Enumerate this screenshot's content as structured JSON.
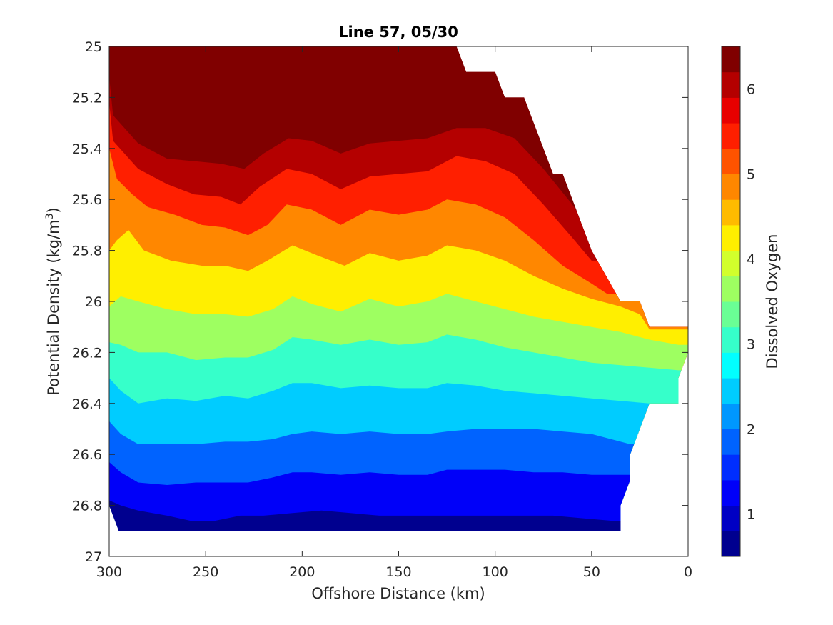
{
  "chart_data": {
    "type": "contourf",
    "title": "Line 57, 05/30",
    "xlabel": "Offshore Distance (km)",
    "ylabel_main": "Potential Density (kg/m",
    "ylabel_sup": "3",
    "ylabel_end": ")",
    "colorbar_label": "Dissolved Oxygen",
    "xlim": [
      300,
      0
    ],
    "ylim": [
      25,
      27
    ],
    "x_reversed": true,
    "y_reversed": true,
    "x_ticks": [
      300,
      250,
      200,
      150,
      100,
      50,
      0
    ],
    "x_tick_labels": [
      "300",
      "250",
      "200",
      "150",
      "100",
      "50",
      "0"
    ],
    "y_ticks": [
      25,
      25.2,
      25.4,
      25.6,
      25.8,
      26,
      26.2,
      26.4,
      26.6,
      26.8,
      27
    ],
    "y_tick_labels": [
      "25",
      "25.2",
      "25.4",
      "25.6",
      "25.8",
      "26",
      "26.2",
      "26.4",
      "26.6",
      "26.8",
      "27"
    ],
    "colorbar_range": [
      0.5,
      6.5
    ],
    "colorbar_ticks": [
      1,
      2,
      3,
      4,
      5,
      6
    ],
    "colorbar_tick_labels": [
      "1",
      "2",
      "3",
      "4",
      "5",
      "6"
    ],
    "contour_step": 0.25,
    "colors": [
      "#00008f",
      "#0000c4",
      "#0000f9",
      "#002eff",
      "#0063ff",
      "#0097ff",
      "#00ccff",
      "#02ffff",
      "#36ffca",
      "#6aff95",
      "#9eff61",
      "#d2ff2c",
      "#ffef00",
      "#ffbb00",
      "#ff8700",
      "#ff5300",
      "#ff1f00",
      "#e80000",
      "#b40000",
      "#800000"
    ],
    "data_top_boundary": [
      [
        300,
        25
      ],
      [
        120,
        25
      ],
      [
        115,
        25.1
      ],
      [
        100,
        25.1
      ],
      [
        95,
        25.2
      ],
      [
        85,
        25.2
      ],
      [
        80,
        25.3
      ],
      [
        70,
        25.5
      ],
      [
        65,
        25.5
      ],
      [
        50,
        25.8
      ],
      [
        35,
        26
      ],
      [
        25,
        26
      ],
      [
        20,
        26.1
      ],
      [
        0,
        26.1
      ]
    ],
    "data_bottom_boundary": [
      [
        0,
        26.2
      ],
      [
        5,
        26.3
      ],
      [
        5,
        26.4
      ],
      [
        20,
        26.4
      ],
      [
        30,
        26.6
      ],
      [
        30,
        26.7
      ],
      [
        35,
        26.8
      ],
      [
        35,
        26.9
      ],
      [
        295,
        26.9
      ],
      [
        300,
        26.8
      ]
    ],
    "isolines": [
      {
        "level": 6.25,
        "points": [
          [
            300,
            25
          ],
          [
            297,
            25.08
          ],
          [
            287,
            25.2
          ],
          [
            270,
            25.24
          ],
          [
            255,
            25.19
          ],
          [
            240,
            25.21
          ],
          [
            228,
            25.25
          ],
          [
            215,
            25.22
          ],
          [
            205,
            25.2
          ],
          [
            195,
            25.17
          ],
          [
            180,
            25.16
          ],
          [
            165,
            25.14
          ],
          [
            150,
            25.12
          ],
          [
            135,
            25.1
          ],
          [
            125,
            25.07
          ],
          [
            120,
            25.02
          ]
        ]
      },
      {
        "level": 5.75,
        "points": [
          [
            300,
            25
          ],
          [
            298,
            25.16
          ],
          [
            285,
            25.28
          ],
          [
            272,
            25.32
          ],
          [
            256,
            25.3
          ],
          [
            240,
            25.31
          ],
          [
            228,
            25.34
          ],
          [
            218,
            25.31
          ],
          [
            205,
            25.28
          ],
          [
            193,
            25.29
          ],
          [
            180,
            25.31
          ],
          [
            165,
            25.27
          ],
          [
            150,
            25.26
          ],
          [
            135,
            25.25
          ],
          [
            120,
            25.21
          ],
          [
            108,
            25.2
          ],
          [
            95,
            25.22
          ],
          [
            85,
            25.24
          ],
          [
            75,
            25.34
          ],
          [
            65,
            25.5
          ]
        ]
      },
      {
        "level": 5.25,
        "points": [
          [
            300,
            25.12
          ],
          [
            298,
            25.27
          ],
          [
            285,
            25.38
          ],
          [
            270,
            25.44
          ],
          [
            256,
            25.45
          ],
          [
            242,
            25.46
          ],
          [
            230,
            25.48
          ],
          [
            220,
            25.42
          ],
          [
            207,
            25.36
          ],
          [
            195,
            25.37
          ],
          [
            180,
            25.42
          ],
          [
            165,
            25.38
          ],
          [
            150,
            25.37
          ],
          [
            135,
            25.36
          ],
          [
            120,
            25.32
          ],
          [
            105,
            25.32
          ],
          [
            90,
            25.36
          ],
          [
            75,
            25.48
          ],
          [
            60,
            25.62
          ],
          [
            55,
            25.68
          ]
        ]
      },
      {
        "level": 4.75,
        "points": [
          [
            300,
            25.22
          ],
          [
            298,
            25.37
          ],
          [
            285,
            25.48
          ],
          [
            270,
            25.54
          ],
          [
            256,
            25.58
          ],
          [
            242,
            25.59
          ],
          [
            232,
            25.62
          ],
          [
            222,
            25.55
          ],
          [
            208,
            25.48
          ],
          [
            195,
            25.5
          ],
          [
            180,
            25.56
          ],
          [
            165,
            25.51
          ],
          [
            150,
            25.5
          ],
          [
            135,
            25.49
          ],
          [
            120,
            25.43
          ],
          [
            105,
            25.45
          ],
          [
            90,
            25.5
          ],
          [
            75,
            25.62
          ],
          [
            60,
            25.75
          ],
          [
            50,
            25.84
          ]
        ]
      },
      {
        "level": 4.25,
        "points": [
          [
            300,
            25.4
          ],
          [
            296,
            25.52
          ],
          [
            288,
            25.58
          ],
          [
            280,
            25.63
          ],
          [
            266,
            25.66
          ],
          [
            252,
            25.7
          ],
          [
            240,
            25.71
          ],
          [
            228,
            25.74
          ],
          [
            218,
            25.7
          ],
          [
            208,
            25.62
          ],
          [
            195,
            25.64
          ],
          [
            180,
            25.7
          ],
          [
            165,
            25.64
          ],
          [
            150,
            25.66
          ],
          [
            135,
            25.64
          ],
          [
            125,
            25.6
          ],
          [
            110,
            25.62
          ],
          [
            95,
            25.67
          ],
          [
            80,
            25.76
          ],
          [
            65,
            25.86
          ],
          [
            50,
            25.93
          ],
          [
            42,
            25.97
          ]
        ]
      },
      {
        "level": 3.75,
        "points": [
          [
            300,
            25.8
          ],
          [
            296,
            25.76
          ],
          [
            290,
            25.72
          ],
          [
            282,
            25.8
          ],
          [
            268,
            25.84
          ],
          [
            252,
            25.86
          ],
          [
            240,
            25.86
          ],
          [
            228,
            25.88
          ],
          [
            218,
            25.84
          ],
          [
            205,
            25.78
          ],
          [
            192,
            25.82
          ],
          [
            178,
            25.86
          ],
          [
            165,
            25.81
          ],
          [
            150,
            25.84
          ],
          [
            135,
            25.82
          ],
          [
            125,
            25.78
          ],
          [
            110,
            25.8
          ],
          [
            95,
            25.84
          ],
          [
            80,
            25.9
          ],
          [
            65,
            25.95
          ],
          [
            50,
            25.99
          ],
          [
            35,
            26.02
          ],
          [
            25,
            26.05
          ],
          [
            20,
            26.11
          ]
        ]
      },
      {
        "level": 3.25,
        "points": [
          [
            300,
            26.02
          ],
          [
            294,
            25.98
          ],
          [
            285,
            26.0
          ],
          [
            270,
            26.03
          ],
          [
            255,
            26.05
          ],
          [
            240,
            26.05
          ],
          [
            228,
            26.06
          ],
          [
            215,
            26.03
          ],
          [
            205,
            25.98
          ],
          [
            195,
            26.01
          ],
          [
            180,
            26.04
          ],
          [
            165,
            25.99
          ],
          [
            150,
            26.02
          ],
          [
            135,
            26.0
          ],
          [
            125,
            25.97
          ],
          [
            110,
            26.0
          ],
          [
            95,
            26.03
          ],
          [
            80,
            26.06
          ],
          [
            65,
            26.08
          ],
          [
            50,
            26.1
          ],
          [
            35,
            26.12
          ],
          [
            20,
            26.15
          ],
          [
            5,
            26.17
          ]
        ]
      },
      {
        "level": 2.75,
        "points": [
          [
            300,
            26.16
          ],
          [
            294,
            26.17
          ],
          [
            285,
            26.2
          ],
          [
            270,
            26.2
          ],
          [
            255,
            26.23
          ],
          [
            240,
            26.22
          ],
          [
            228,
            26.22
          ],
          [
            215,
            26.19
          ],
          [
            205,
            26.14
          ],
          [
            195,
            26.15
          ],
          [
            180,
            26.17
          ],
          [
            165,
            26.15
          ],
          [
            150,
            26.17
          ],
          [
            135,
            26.16
          ],
          [
            125,
            26.13
          ],
          [
            110,
            26.15
          ],
          [
            95,
            26.18
          ],
          [
            80,
            26.2
          ],
          [
            65,
            26.22
          ],
          [
            50,
            26.24
          ],
          [
            35,
            26.25
          ],
          [
            20,
            26.26
          ],
          [
            5,
            26.27
          ]
        ]
      },
      {
        "level": 2.25,
        "points": [
          [
            300,
            26.3
          ],
          [
            294,
            26.35
          ],
          [
            285,
            26.4
          ],
          [
            270,
            26.38
          ],
          [
            255,
            26.39
          ],
          [
            240,
            26.37
          ],
          [
            228,
            26.38
          ],
          [
            215,
            26.35
          ],
          [
            205,
            26.32
          ],
          [
            195,
            26.32
          ],
          [
            180,
            26.34
          ],
          [
            165,
            26.33
          ],
          [
            150,
            26.34
          ],
          [
            135,
            26.34
          ],
          [
            125,
            26.32
          ],
          [
            110,
            26.33
          ],
          [
            95,
            26.35
          ],
          [
            80,
            26.36
          ],
          [
            65,
            26.37
          ],
          [
            50,
            26.38
          ],
          [
            35,
            26.39
          ],
          [
            20,
            26.4
          ]
        ]
      },
      {
        "level": 1.75,
        "points": [
          [
            300,
            26.47
          ],
          [
            294,
            26.52
          ],
          [
            285,
            26.56
          ],
          [
            270,
            26.56
          ],
          [
            255,
            26.56
          ],
          [
            240,
            26.55
          ],
          [
            228,
            26.55
          ],
          [
            215,
            26.54
          ],
          [
            205,
            26.52
          ],
          [
            195,
            26.51
          ],
          [
            180,
            26.52
          ],
          [
            165,
            26.51
          ],
          [
            150,
            26.52
          ],
          [
            135,
            26.52
          ],
          [
            125,
            26.51
          ],
          [
            110,
            26.5
          ],
          [
            95,
            26.5
          ],
          [
            80,
            26.5
          ],
          [
            65,
            26.51
          ],
          [
            50,
            26.52
          ],
          [
            40,
            26.54
          ],
          [
            30,
            26.56
          ]
        ]
      },
      {
        "level": 1.25,
        "points": [
          [
            300,
            26.63
          ],
          [
            294,
            26.67
          ],
          [
            285,
            26.71
          ],
          [
            270,
            26.72
          ],
          [
            255,
            26.71
          ],
          [
            240,
            26.71
          ],
          [
            228,
            26.71
          ],
          [
            215,
            26.69
          ],
          [
            205,
            26.67
          ],
          [
            195,
            26.67
          ],
          [
            180,
            26.68
          ],
          [
            165,
            26.67
          ],
          [
            150,
            26.68
          ],
          [
            135,
            26.68
          ],
          [
            125,
            26.66
          ],
          [
            110,
            26.66
          ],
          [
            95,
            26.66
          ],
          [
            80,
            26.67
          ],
          [
            65,
            26.67
          ],
          [
            50,
            26.68
          ],
          [
            35,
            26.68
          ],
          [
            30,
            26.68
          ]
        ]
      },
      {
        "level": 0.75,
        "points": [
          [
            300,
            26.78
          ],
          [
            294,
            26.8
          ],
          [
            285,
            26.82
          ],
          [
            270,
            26.84
          ],
          [
            258,
            26.86
          ],
          [
            245,
            26.86
          ],
          [
            232,
            26.84
          ],
          [
            220,
            26.84
          ],
          [
            205,
            26.83
          ],
          [
            190,
            26.82
          ],
          [
            175,
            26.83
          ],
          [
            160,
            26.84
          ],
          [
            145,
            26.84
          ],
          [
            130,
            26.84
          ],
          [
            115,
            26.84
          ],
          [
            100,
            26.84
          ],
          [
            85,
            26.84
          ],
          [
            70,
            26.84
          ],
          [
            55,
            26.85
          ],
          [
            40,
            26.86
          ],
          [
            35,
            26.86
          ]
        ]
      }
    ]
  }
}
